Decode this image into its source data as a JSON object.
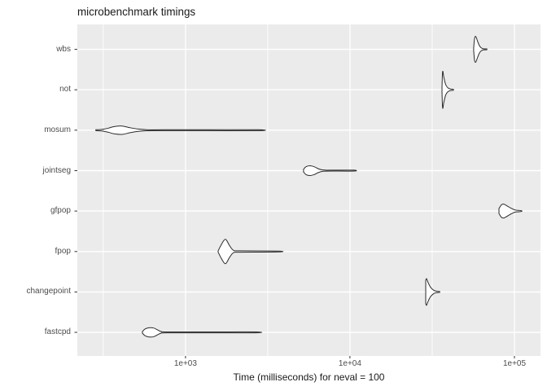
{
  "colors": {
    "panel_background": "#EBEBEB",
    "grid": "#FFFFFF",
    "violin_fill": "#FFFFFF",
    "violin_stroke": "#2B2B2B",
    "axis_text": "#4D4D4D",
    "tick_mark": "#333333",
    "title_text": "#1A1A1A"
  },
  "chart_data": {
    "type": "violin",
    "title": "microbenchmark timings",
    "xlabel": "Time (milliseconds) for neval = 100",
    "ylabel": "",
    "x_scale": "log10",
    "x_domain_ms": [
      220,
      144000
    ],
    "x_ticks": [
      {
        "value": 1000,
        "label": "1e+03"
      },
      {
        "value": 10000,
        "label": "1e+04"
      },
      {
        "value": 100000,
        "label": "1e+05"
      }
    ],
    "x_minor_ticks_ms": [
      316.23,
      3162.28,
      31622.78
    ],
    "grid": "major-and-minor, white on gray panel",
    "legend": "none",
    "categories": [
      "wbs",
      "not",
      "mosum",
      "jointseg",
      "gfpop",
      "fpop",
      "changepoint",
      "fastcpd"
    ],
    "violins": [
      {
        "name": "wbs",
        "range_ms": [
          56500,
          67900
        ],
        "peak_ms": 58200,
        "rel_width": 0.7,
        "profile": [
          [
            56500,
            0.08
          ],
          [
            57200,
            0.85
          ],
          [
            58200,
            1.0
          ],
          [
            59800,
            0.6
          ],
          [
            61500,
            0.25
          ],
          [
            63500,
            0.08
          ],
          [
            66000,
            0.03
          ],
          [
            67900,
            0.02
          ]
        ]
      },
      {
        "name": "not",
        "range_ms": [
          36250,
          42500
        ],
        "peak_ms": 36600,
        "rel_width": 1.0,
        "profile": [
          [
            36250,
            0.1
          ],
          [
            36600,
            1.0
          ],
          [
            37200,
            0.7
          ],
          [
            38200,
            0.28
          ],
          [
            39500,
            0.1
          ],
          [
            41000,
            0.04
          ],
          [
            42500,
            0.02
          ]
        ]
      },
      {
        "name": "mosum",
        "range_ms": [
          285,
          2790
        ],
        "peak_ms": 411,
        "rel_width": 0.23,
        "profile": [
          [
            285,
            0.06
          ],
          [
            310,
            0.18
          ],
          [
            340,
            0.5
          ],
          [
            367,
            0.85
          ],
          [
            411,
            1.0
          ],
          [
            460,
            0.6
          ],
          [
            516,
            0.28
          ],
          [
            580,
            0.12
          ],
          [
            730,
            0.09
          ],
          [
            1300,
            0.08
          ],
          [
            2790,
            0.05
          ]
        ]
      },
      {
        "name": "jointseg",
        "range_ms": [
          5220,
          10590
        ],
        "peak_ms": 5720,
        "rel_width": 0.27,
        "profile": [
          [
            5220,
            0.25
          ],
          [
            5400,
            0.8
          ],
          [
            5720,
            1.0
          ],
          [
            6060,
            0.8
          ],
          [
            6410,
            0.4
          ],
          [
            6710,
            0.18
          ],
          [
            7100,
            0.1
          ],
          [
            7960,
            0.08
          ],
          [
            10590,
            0.05
          ]
        ]
      },
      {
        "name": "gfpop",
        "range_ms": [
          80500,
          110000
        ],
        "peak_ms": 86200,
        "rel_width": 0.38,
        "profile": [
          [
            80500,
            0.35
          ],
          [
            83300,
            0.9
          ],
          [
            86200,
            1.0
          ],
          [
            90300,
            0.75
          ],
          [
            95500,
            0.4
          ],
          [
            101200,
            0.15
          ],
          [
            110000,
            0.03
          ]
        ]
      },
      {
        "name": "fpop",
        "range_ms": [
          1578,
          3670
        ],
        "peak_ms": 1748,
        "rel_width": 0.67,
        "profile": [
          [
            1578,
            0.04
          ],
          [
            1650,
            0.55
          ],
          [
            1748,
            1.0
          ],
          [
            1850,
            0.5
          ],
          [
            1960,
            0.1
          ],
          [
            2150,
            0.06
          ],
          [
            3670,
            0.04
          ]
        ]
      },
      {
        "name": "changepoint",
        "range_ms": [
          28870,
          35040
        ],
        "peak_ms": 29200,
        "rel_width": 0.73,
        "profile": [
          [
            28870,
            0.85
          ],
          [
            29200,
            1.0
          ],
          [
            29870,
            0.7
          ],
          [
            30910,
            0.35
          ],
          [
            32360,
            0.12
          ],
          [
            33860,
            0.05
          ],
          [
            35040,
            0.02
          ]
        ]
      },
      {
        "name": "fastcpd",
        "range_ms": [
          547,
          2695
        ],
        "peak_ms": 598,
        "rel_width": 0.25,
        "profile": [
          [
            547,
            0.15
          ],
          [
            566,
            0.7
          ],
          [
            598,
            1.0
          ],
          [
            641,
            0.95
          ],
          [
            679,
            0.5
          ],
          [
            710,
            0.2
          ],
          [
            770,
            0.1
          ],
          [
            1440,
            0.08
          ],
          [
            2695,
            0.05
          ]
        ]
      }
    ]
  }
}
